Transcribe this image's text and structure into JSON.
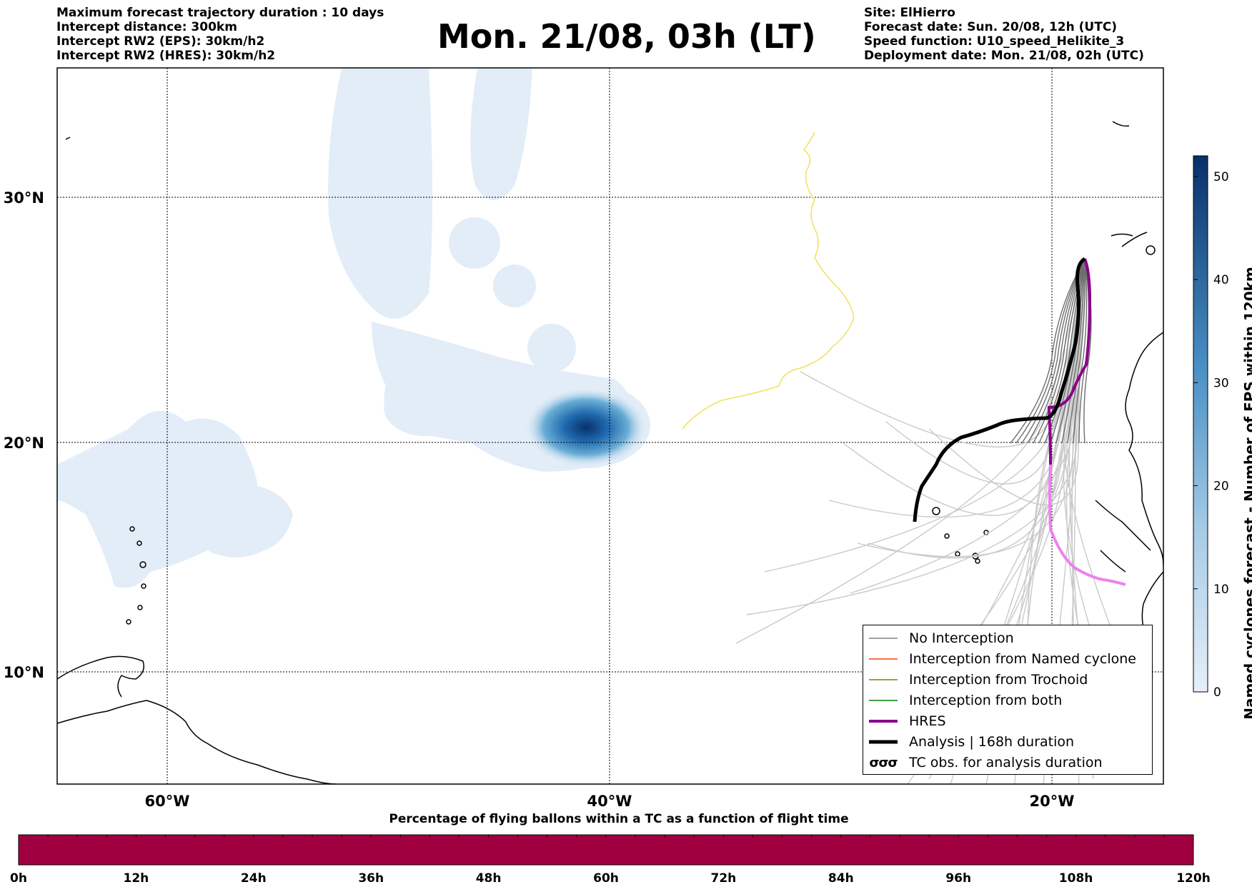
{
  "header_left": [
    "Maximum forecast trajectory duration : 10 days",
    "Intercept distance: 300km",
    "Intercept RW2 (EPS):  30km/h2",
    "Intercept RW2 (HRES): 30km/h2"
  ],
  "header_right": [
    "Site: ElHierro",
    "Forecast date: Sun. 20/08, 12h (UTC)",
    "Speed function: U10_speed_Helikite_3",
    "Deployment date: Mon. 21/08, 02h (UTC)"
  ],
  "title": "Mon. 21/08, 03h (LT)",
  "map": {
    "lat_labels": [
      "30°N",
      "20°N",
      "10°N"
    ],
    "lon_labels": [
      "60°W",
      "40°W",
      "20°W"
    ],
    "lat_values": [
      30,
      20,
      10
    ],
    "lon_values": [
      -60,
      -40,
      -20
    ],
    "gridlines": "dotted"
  },
  "legend": [
    {
      "label": "No Interception",
      "color": "#808080",
      "style": "thin-line"
    },
    {
      "label": "Interception from Named cyclone",
      "color": "#ff4500",
      "style": "thin-line"
    },
    {
      "label": "Interception from Trochoid",
      "color": "#808000",
      "style": "thin-line"
    },
    {
      "label": "Interception from both",
      "color": "#008000",
      "style": "thin-line"
    },
    {
      "label": "HRES",
      "color": "#8b008b",
      "style": "thick-line"
    },
    {
      "label": "Analysis | 168h duration",
      "color": "#000000",
      "style": "thick-line"
    },
    {
      "label": "TC obs. for analysis duration",
      "color": "#000000",
      "style": "cyclone-symbols"
    }
  ],
  "colorbar": {
    "label": "Named cyclones forecast - Number of EPS within 120km",
    "ticks": [
      "0",
      "10",
      "20",
      "30",
      "40",
      "50"
    ],
    "tick_values": [
      0,
      10,
      20,
      30,
      40,
      50
    ],
    "max": 52,
    "color_low": "#e6eff9",
    "color_high": "#08306b"
  },
  "balloon_bar": {
    "title": "Percentage of flying ballons within a TC as a function of flight time",
    "ticks": [
      "0h",
      "12h",
      "24h",
      "36h",
      "48h",
      "60h",
      "72h",
      "84h",
      "96h",
      "108h",
      "120h"
    ],
    "fill_color": "#a0003f"
  }
}
